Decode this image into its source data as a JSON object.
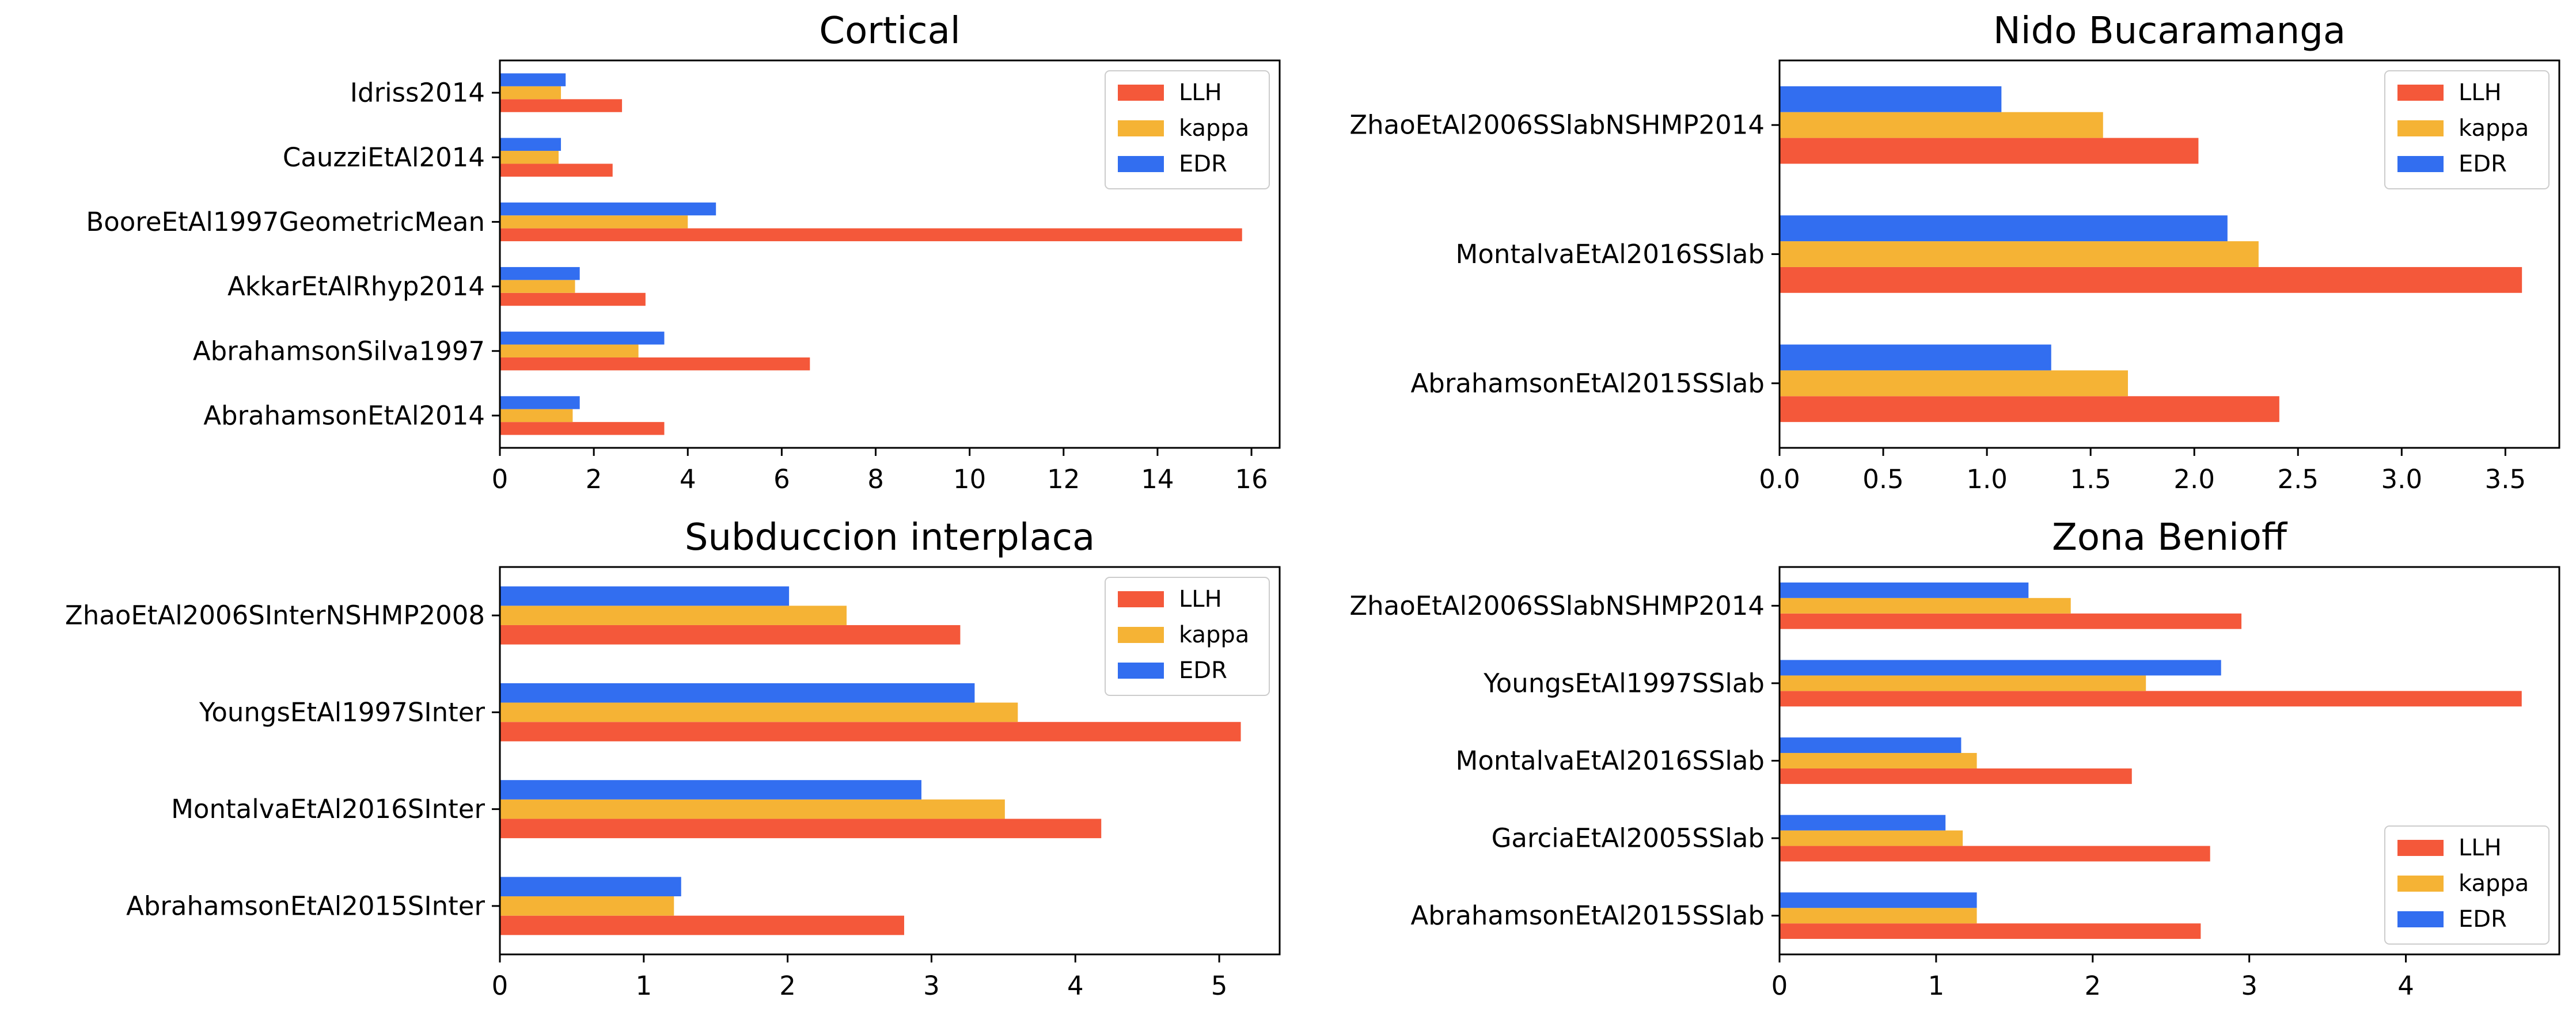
{
  "colors": {
    "LLH": "#f4583a",
    "kappa": "#f5b335",
    "EDR": "#326ef0"
  },
  "chart_data": [
    {
      "type": "bar",
      "orientation": "horizontal",
      "title": "Cortical",
      "categories": [
        "AbrahamsonEtAl2014",
        "AbrahamsonSilva1997",
        "AkkarEtAlRhyp2014",
        "BooreEtAl1997GeometricMean",
        "CauzziEtAl2014",
        "Idriss2014"
      ],
      "series": [
        {
          "name": "LLH",
          "values": [
            3.5,
            6.6,
            3.1,
            15.8,
            2.4,
            2.6
          ]
        },
        {
          "name": "kappa",
          "values": [
            1.55,
            2.95,
            1.6,
            4.0,
            1.25,
            1.3
          ]
        },
        {
          "name": "EDR",
          "values": [
            1.7,
            3.5,
            1.7,
            4.6,
            1.3,
            1.4
          ]
        }
      ],
      "xlim": [
        0,
        16.6
      ],
      "xticks": [
        "0",
        "2",
        "4",
        "6",
        "8",
        "10",
        "12",
        "14",
        "16"
      ],
      "xtick_values": [
        0,
        2,
        4,
        6,
        8,
        10,
        12,
        14,
        16
      ],
      "legend": "top-right",
      "grid": false
    },
    {
      "type": "bar",
      "orientation": "horizontal",
      "title": "Nido Bucaramanga",
      "categories": [
        "AbrahamsonEtAl2015SSlab",
        "MontalvaEtAl2016SSlab",
        "ZhaoEtAl2006SSlabNSHMP2014"
      ],
      "series": [
        {
          "name": "LLH",
          "values": [
            2.41,
            3.58,
            2.02
          ]
        },
        {
          "name": "kappa",
          "values": [
            1.68,
            2.31,
            1.56
          ]
        },
        {
          "name": "EDR",
          "values": [
            1.31,
            2.16,
            1.07
          ]
        }
      ],
      "xlim": [
        0,
        3.76
      ],
      "xticks": [
        "0.0",
        "0.5",
        "1.0",
        "1.5",
        "2.0",
        "2.5",
        "3.0",
        "3.5"
      ],
      "xtick_values": [
        0,
        0.5,
        1.0,
        1.5,
        2.0,
        2.5,
        3.0,
        3.5
      ],
      "legend": "top-right",
      "grid": false
    },
    {
      "type": "bar",
      "orientation": "horizontal",
      "title": "Subduccion interplaca",
      "categories": [
        "AbrahamsonEtAl2015SInter",
        "MontalvaEtAl2016SInter",
        "YoungsEtAl1997SInter",
        "ZhaoEtAl2006SInterNSHMP2008"
      ],
      "series": [
        {
          "name": "LLH",
          "values": [
            2.81,
            4.18,
            5.15,
            3.2
          ]
        },
        {
          "name": "kappa",
          "values": [
            1.21,
            3.51,
            3.6,
            2.41
          ]
        },
        {
          "name": "EDR",
          "values": [
            1.26,
            2.93,
            3.3,
            2.01
          ]
        }
      ],
      "xlim": [
        0,
        5.42
      ],
      "xticks": [
        "0",
        "1",
        "2",
        "3",
        "4",
        "5"
      ],
      "xtick_values": [
        0,
        1,
        2,
        3,
        4,
        5
      ],
      "legend": "top-right",
      "grid": false
    },
    {
      "type": "bar",
      "orientation": "horizontal",
      "title": "Zona Benioff",
      "categories": [
        "AbrahamsonEtAl2015SSlab",
        "GarciaEtAl2005SSlab",
        "MontalvaEtAl2016SSlab",
        "YoungsEtAl1997SSlab",
        "ZhaoEtAl2006SSlabNSHMP2014"
      ],
      "series": [
        {
          "name": "LLH",
          "values": [
            2.69,
            2.75,
            2.25,
            4.74,
            2.95
          ]
        },
        {
          "name": "kappa",
          "values": [
            1.26,
            1.17,
            1.26,
            2.34,
            1.86
          ]
        },
        {
          "name": "EDR",
          "values": [
            1.26,
            1.06,
            1.16,
            2.82,
            1.59
          ]
        }
      ],
      "xlim": [
        0,
        4.98
      ],
      "xticks": [
        "0",
        "1",
        "2",
        "3",
        "4"
      ],
      "xtick_values": [
        0,
        1,
        2,
        3,
        4
      ],
      "legend": "bottom-right",
      "grid": false
    }
  ]
}
